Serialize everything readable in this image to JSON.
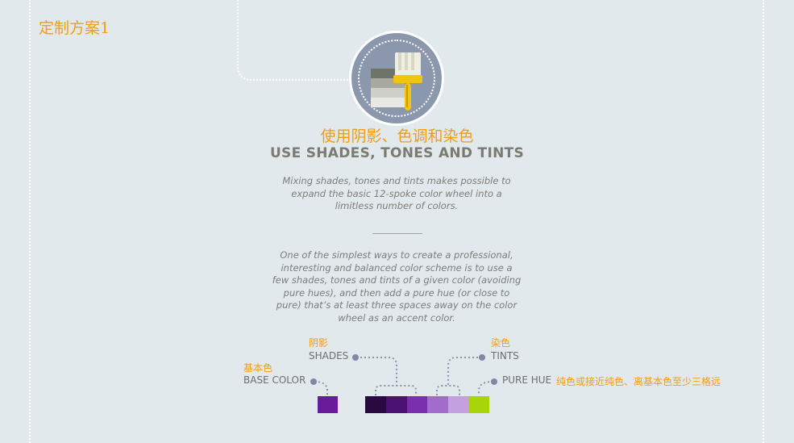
{
  "tag_title": "定制方案1",
  "heading_cn": "使用阴影、色调和染色",
  "heading_en": "USE SHADES, TONES AND TINTS",
  "intro_lines": [
    "Mixing shades, tones and tints makes possible to",
    "expand the basic 12-spoke color wheel into a",
    "limitless number of colors."
  ],
  "body_lines": [
    "One of the simplest ways to create a professional,",
    "interesting and balanced color scheme is to use a",
    "few shades, tones and tints of a given color (avoiding",
    "pure hues), and then add a pure hue (or close to",
    "pure) that’s at least three spaces away on the color",
    "wheel as an accent color."
  ],
  "labels": {
    "shades_cn": "阴影",
    "shades_en": "SHADES",
    "tints_cn": "染色",
    "tints_en": "TINTS",
    "base_cn": "基本色",
    "base_en": "BASE COLOR",
    "pure_en": "PURE HUE",
    "pure_cn": "纯色或接近纯色、离基本色至少三格远"
  },
  "icons": {
    "medal": "paint-brush-swatches-icon"
  },
  "colors": {
    "background": "#e1e9ec",
    "accent_text": "#f39c12",
    "base_swatch": "#6a1b9a",
    "shade_1": "#2a0940",
    "shade_2": "#4a1173",
    "shade_3": "#7a2fae",
    "tint_1": "#a26ccc",
    "tint_2": "#c3a0de",
    "pure_hue": "#a8d40a"
  }
}
